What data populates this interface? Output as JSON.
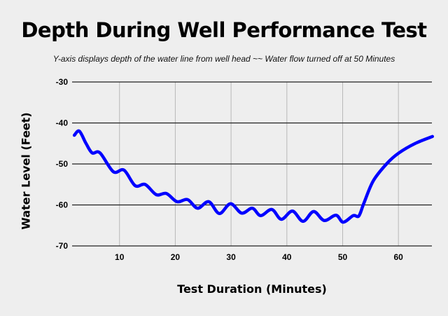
{
  "chart_data": {
    "type": "line",
    "title": "Depth During Well Performance Test",
    "subtitle": "Y-axis displays depth of the water line from well head ~~ Water flow turned off at 50 Minutes",
    "xlabel": "Test Duration (Minutes)",
    "ylabel": "Water Level (Feet)",
    "xlim": [
      1.5,
      66
    ],
    "ylim": [
      -70,
      -30
    ],
    "xticks": [
      10,
      20,
      30,
      40,
      50,
      60
    ],
    "yticks": [
      -30,
      -40,
      -50,
      -60,
      -70
    ],
    "grid": {
      "x": true,
      "y": true
    },
    "line_color": "#0000ff",
    "background": "#eeeeee",
    "series": [
      {
        "x": [
          1.9,
          2.8,
          4.0,
          5.1,
          6.5,
          8.9,
          10.8,
          12.8,
          14.6,
          16.6,
          18.4,
          20.3,
          22.2,
          24.0,
          26.0,
          27.9,
          29.9,
          31.9,
          33.8,
          35.3,
          37.3,
          39.0,
          41.0,
          42.9,
          44.8,
          46.7,
          48.8,
          50.1,
          51.9,
          52.9,
          53.8,
          55.5,
          58.0,
          60.1,
          63.0,
          66.1
        ],
        "y": [
          -43.0,
          -42.0,
          -45.0,
          -47.3,
          -47.3,
          -51.9,
          -51.5,
          -55.3,
          -55.0,
          -57.5,
          -57.2,
          -59.2,
          -58.7,
          -60.8,
          -59.2,
          -62.1,
          -59.7,
          -62.0,
          -60.8,
          -62.6,
          -61.1,
          -63.5,
          -61.5,
          -64.0,
          -61.6,
          -63.8,
          -62.5,
          -64.2,
          -62.6,
          -62.7,
          -59.6,
          -54.1,
          -49.8,
          -47.3,
          -45.0,
          -43.3
        ]
      }
    ]
  }
}
